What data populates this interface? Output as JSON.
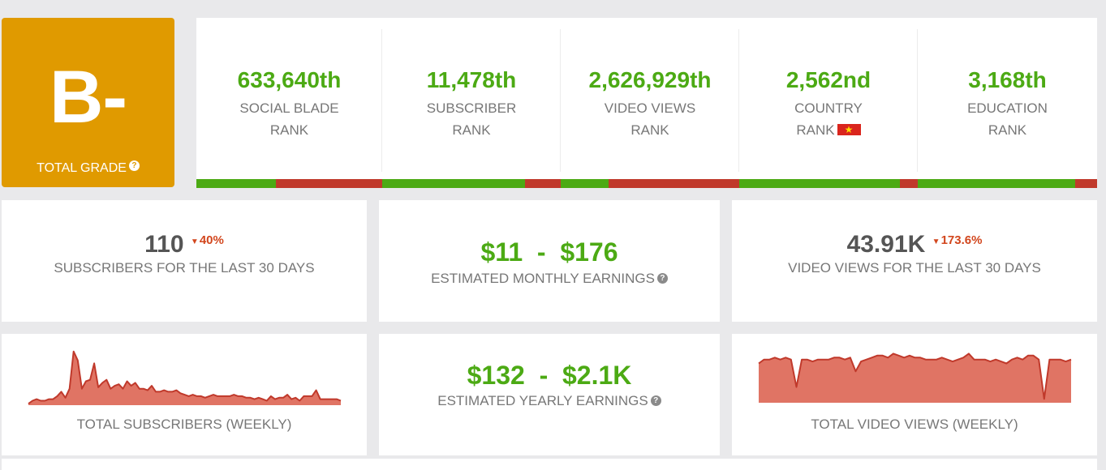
{
  "grade": {
    "letter": "B-",
    "label": "TOTAL GRADE",
    "help_icon": "question-circle-icon"
  },
  "ranks": [
    {
      "value": "633,640th",
      "line1": "SOCIAL BLADE",
      "line2": "RANK",
      "bar_fraction": 0.43
    },
    {
      "value": "11,478th",
      "line1": "SUBSCRIBER",
      "line2": "RANK",
      "bar_fraction": 0.8
    },
    {
      "value": "2,626,929th",
      "line1": "VIDEO VIEWS",
      "line2": "RANK",
      "bar_fraction": 0.27
    },
    {
      "value": "2,562nd",
      "line1": "COUNTRY",
      "line2": "RANK",
      "flag_icon": "vietnam-flag-icon",
      "bar_fraction": 0.9
    },
    {
      "value": "3,168th",
      "line1": "EDUCATION",
      "line2": "RANK",
      "bar_fraction": 0.88
    }
  ],
  "stats": {
    "subscribers_30": {
      "value": "110",
      "delta": "40%",
      "label": "SUBSCRIBERS FOR THE LAST 30 DAYS"
    },
    "monthly": {
      "value": "$11  -  $176",
      "label": "ESTIMATED MONTHLY EARNINGS"
    },
    "views_30": {
      "value": "43.91K",
      "delta": "173.6%",
      "label": "VIDEO VIEWS FOR THE LAST 30 DAYS"
    },
    "yearly": {
      "value": "$132  -  $2.1K",
      "label": "ESTIMATED YEARLY EARNINGS"
    }
  },
  "colors": {
    "grade_bg": "#e09a00",
    "green": "#4caa14",
    "red": "#c0392b",
    "delta_red": "#d2461d",
    "chart_fill": "#e07464",
    "chart_line": "#c0392b"
  },
  "chart_data": [
    {
      "type": "area",
      "title": "TOTAL SUBSCRIBERS (WEEKLY)",
      "values": [
        1,
        3,
        4,
        3,
        3,
        4,
        4,
        6,
        9,
        5,
        11,
        36,
        30,
        11,
        16,
        17,
        28,
        12,
        15,
        17,
        11,
        13,
        14,
        11,
        16,
        13,
        15,
        11,
        11,
        10,
        13,
        9,
        9,
        10,
        9,
        9,
        10,
        8,
        7,
        6,
        7,
        6,
        6,
        5,
        6,
        7,
        6,
        6,
        6,
        6,
        7,
        6,
        6,
        5,
        5,
        4,
        5,
        4,
        3,
        6,
        4,
        5,
        5,
        7,
        4,
        5,
        3,
        6,
        6,
        6,
        10,
        4,
        4,
        4,
        4,
        4,
        3
      ],
      "ylim": [
        0,
        38
      ]
    },
    {
      "type": "area",
      "title": "TOTAL VIDEO VIEWS (WEEKLY)",
      "values": [
        20,
        22,
        22,
        23,
        22,
        23,
        22,
        8,
        22,
        22,
        21,
        22,
        22,
        22,
        23,
        23,
        22,
        23,
        16,
        21,
        22,
        23,
        24,
        24,
        23,
        25,
        24,
        23,
        24,
        23,
        23,
        22,
        22,
        22,
        23,
        22,
        21,
        22,
        23,
        25,
        22,
        22,
        22,
        21,
        22,
        21,
        20,
        22,
        23,
        22,
        24,
        24,
        22,
        2,
        22,
        22,
        22,
        21,
        22
      ],
      "ylim": [
        0,
        26
      ]
    }
  ]
}
